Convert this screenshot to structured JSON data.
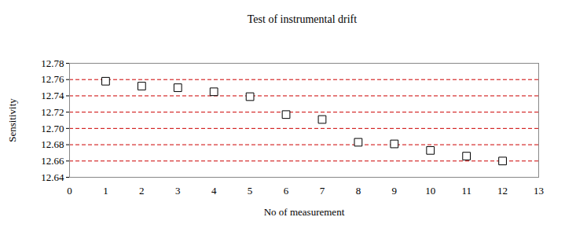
{
  "chart_data": {
    "type": "scatter",
    "title": "Test of instrumental drift",
    "x_label": "No of measurement",
    "y_label": "Sensitivity",
    "x": [
      1,
      2,
      3,
      4,
      5,
      6,
      7,
      8,
      9,
      10,
      11,
      12
    ],
    "values": [
      12.758,
      12.752,
      12.75,
      12.745,
      12.739,
      12.717,
      12.711,
      12.683,
      12.681,
      12.673,
      12.666,
      12.66
    ],
    "xlim": [
      0,
      13
    ],
    "xticks": [
      0,
      1,
      2,
      3,
      4,
      5,
      6,
      7,
      8,
      9,
      10,
      11,
      12,
      13
    ],
    "ylim": [
      12.64,
      12.78
    ],
    "yticks": [
      12.64,
      12.66,
      12.68,
      {
        "value": 12.7,
        "label": "12.70"
      },
      12.72,
      12.74,
      12.76,
      12.78
    ],
    "grid": true,
    "marker": "square",
    "color": "#000000"
  }
}
